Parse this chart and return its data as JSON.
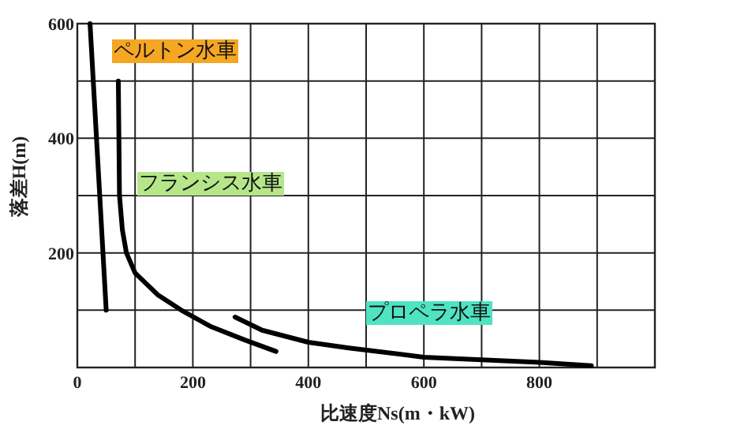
{
  "chart_data": {
    "type": "line",
    "xlabel": "比速度Ns(m・kW)",
    "ylabel": "落差H(m)",
    "xlim": [
      0,
      1000
    ],
    "ylim": [
      0,
      600
    ],
    "xticks": [
      0,
      200,
      400,
      600,
      800
    ],
    "yticks": [
      200,
      400,
      600
    ],
    "grid": true,
    "series": [
      {
        "color": "#000000",
        "x": [
          22,
          50
        ],
        "values": [
          600,
          100
        ]
      },
      {
        "color": "#000000",
        "x": [
          71,
          72,
          73,
          78,
          85,
          100,
          139,
          180,
          230,
          290,
          344
        ],
        "values": [
          500,
          400,
          300,
          240,
          200,
          165,
          127,
          100,
          72,
          48,
          28
        ]
      },
      {
        "color": "#000000",
        "x": [
          273,
          320,
          400,
          470,
          600,
          800,
          890
        ],
        "values": [
          88,
          65,
          44,
          34,
          18,
          9,
          3
        ]
      }
    ],
    "annotations": [
      "ペルトン水車",
      "フランシス水車",
      "プロペラ水車"
    ]
  }
}
